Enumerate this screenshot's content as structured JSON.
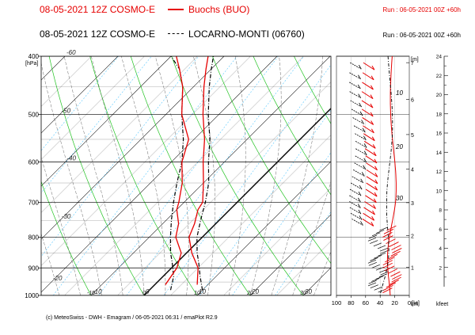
{
  "header": {
    "line1": {
      "model": "08-05-2021 12Z COSMO-E",
      "station": "Buochs (BUO)",
      "run": "Run : 06-05-2021 00Z +60h"
    },
    "line2": {
      "model": "08-05-2021 12Z COSMO-E",
      "station": "LOCARNO-MONTI (06760)",
      "run": "Run : 06-05-2021 00Z +60h"
    }
  },
  "footer": "(c) MeteoSwiss - DWH - Emagram / 06-05-2021  06:31 / emaPlot R2.9",
  "colors": {
    "series1": "#e60000",
    "series2": "#000000",
    "isobar": "#000000",
    "isotherm": "#000000",
    "dry_adiabat": "#22c322",
    "moist_adiabat": "#555555",
    "mixing_ratio": "#58c8ff"
  },
  "chart_data": {
    "type": "line",
    "subtype": "emagram",
    "ylabel": "[hPa]",
    "y_scale": "log",
    "ylim": [
      1000,
      400
    ],
    "y_ticks": [
      400,
      500,
      600,
      700,
      800,
      900,
      1000
    ],
    "isotherm_labels": [
      {
        "label": "-60",
        "t": -60
      },
      {
        "label": "-50",
        "t": -50
      },
      {
        "label": "-40",
        "t": -40
      },
      {
        "label": "-30",
        "t": -30
      },
      {
        "label": "-20",
        "t": -20
      },
      {
        "label": "-10",
        "t": -10
      },
      {
        "label": "0",
        "t": 0
      },
      {
        "label": "10",
        "t": 10
      },
      {
        "label": "20",
        "t": 20
      },
      {
        "label": "30",
        "t": 30
      }
    ],
    "temperature_axis_labels": [
      "-60",
      "-50",
      "-40",
      "-30",
      "-20",
      "-10",
      "0",
      "10",
      "20",
      "30"
    ],
    "series": [
      {
        "name": "Buochs (BUO)",
        "temperature": [
          [
            960,
            8
          ],
          [
            900,
            5
          ],
          [
            850,
            1
          ],
          [
            800,
            -2.5
          ],
          [
            760,
            -4
          ],
          [
            720,
            -6
          ],
          [
            700,
            -6.5
          ],
          [
            650,
            -10
          ],
          [
            600,
            -14
          ],
          [
            550,
            -18
          ],
          [
            500,
            -23
          ],
          [
            450,
            -28
          ],
          [
            420,
            -31
          ],
          [
            400,
            -33
          ]
        ],
        "dewpoint": [
          [
            960,
            2
          ],
          [
            900,
            1
          ],
          [
            850,
            -1
          ],
          [
            800,
            -5
          ],
          [
            760,
            -7
          ],
          [
            720,
            -10
          ],
          [
            700,
            -11
          ],
          [
            650,
            -14
          ],
          [
            600,
            -18
          ],
          [
            550,
            -21
          ],
          [
            500,
            -27
          ],
          [
            450,
            -32
          ],
          [
            420,
            -36
          ],
          [
            400,
            -39
          ]
        ]
      },
      {
        "name": "LOCARNO-MONTI (06760)",
        "temperature": [
          [
            980,
            10
          ],
          [
            930,
            7
          ],
          [
            880,
            4
          ],
          [
            850,
            2
          ],
          [
            800,
            -1
          ],
          [
            750,
            -3.5
          ],
          [
            700,
            -6
          ],
          [
            650,
            -9
          ],
          [
            600,
            -13
          ],
          [
            550,
            -17
          ],
          [
            500,
            -22
          ],
          [
            450,
            -27
          ],
          [
            420,
            -30
          ],
          [
            400,
            -32
          ]
        ],
        "dewpoint": [
          [
            980,
            4
          ],
          [
            930,
            2
          ],
          [
            880,
            -1
          ],
          [
            850,
            -3
          ],
          [
            800,
            -6
          ],
          [
            750,
            -9
          ],
          [
            700,
            -12
          ],
          [
            650,
            -15
          ],
          [
            600,
            -18
          ],
          [
            550,
            -22
          ],
          [
            500,
            -27
          ],
          [
            450,
            -32
          ],
          [
            420,
            -36
          ],
          [
            400,
            -40
          ]
        ]
      }
    ],
    "wind_axis": {
      "unit": "[kt]",
      "ticks": [
        "100",
        "80",
        "60",
        "40",
        "20",
        "0"
      ],
      "range": [
        100,
        0
      ]
    },
    "height_km_axis": {
      "unit": "[m]",
      "foot_label": "km",
      "ticks": [
        "1",
        "2",
        "3",
        "4",
        "5",
        "6",
        "7"
      ]
    },
    "height_kfeet_axis": {
      "unit": "kfeet",
      "ticks": [
        "2",
        "4",
        "6",
        "8",
        "10",
        "12",
        "14",
        "16",
        "18",
        "20",
        "22",
        "24"
      ]
    },
    "mixing_ratio_labels": [
      "10",
      "20",
      "30"
    ]
  }
}
